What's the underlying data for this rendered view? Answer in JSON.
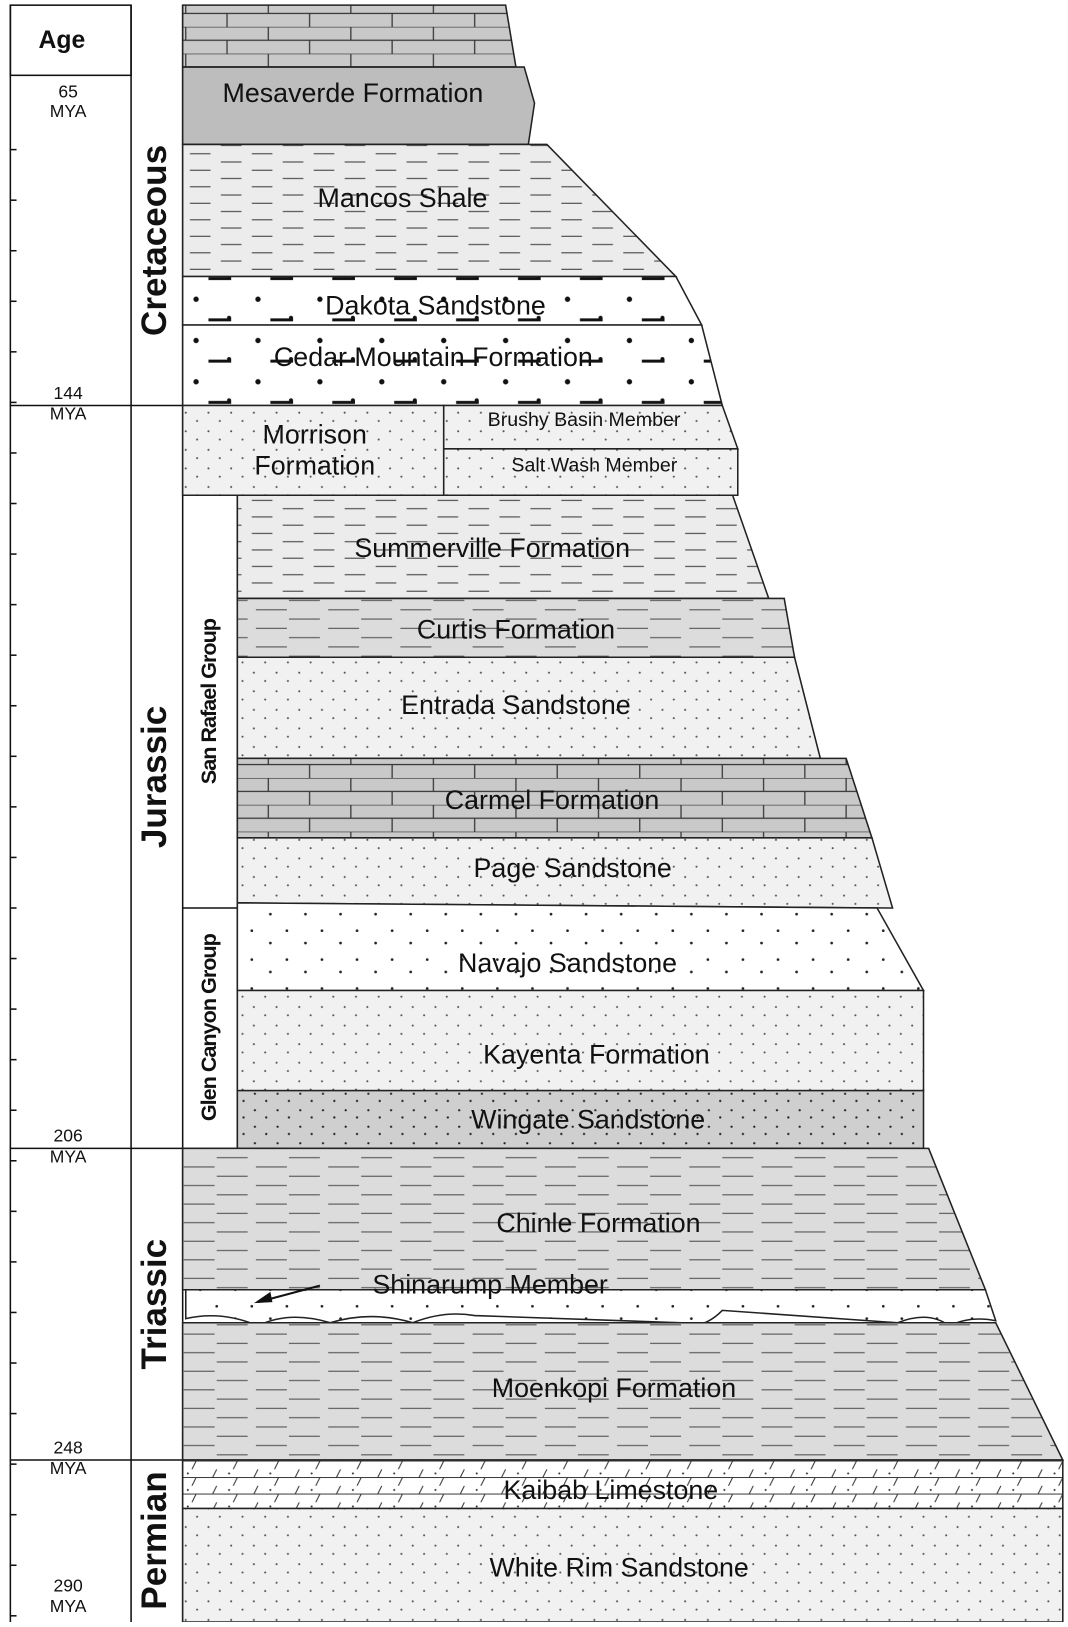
{
  "header": {
    "age": "Age"
  },
  "ages": [
    {
      "value": "65",
      "unit": "MYA"
    },
    {
      "value": "144",
      "unit": "MYA"
    },
    {
      "value": "206",
      "unit": "MYA"
    },
    {
      "value": "248",
      "unit": "MYA"
    },
    {
      "value": "290",
      "unit": "MYA"
    }
  ],
  "periods": [
    "Cretaceous",
    "Jurassic",
    "Triassic",
    "Permian"
  ],
  "groups": [
    "San Rafael Group",
    "Glen Canyon Group"
  ],
  "formations": [
    "Mesaverde Formation",
    "Mancos Shale",
    "Dakota Sandstone",
    "Cedar Mountain Formation",
    "Morrison Formation",
    "Summerville Formation",
    "Curtis Formation",
    "Entrada Sandstone",
    "Carmel Formation",
    "Page Sandstone",
    "Navajo Sandstone",
    "Kayenta Formation",
    "Wingate Sandstone",
    "Chinle Formation",
    "Moenkopi Formation",
    "Kaibab Limestone",
    "White Rim Sandstone"
  ],
  "members": [
    "Brushy Basin Member",
    "Salt Wash Member",
    "Shinarump Member"
  ]
}
